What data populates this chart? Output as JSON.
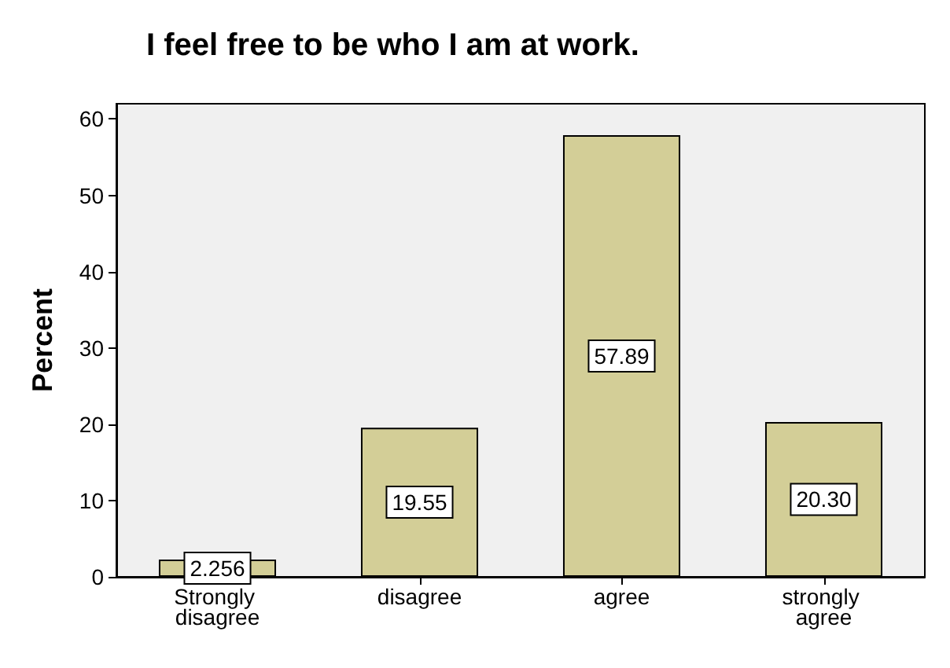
{
  "chart_data": {
    "type": "bar",
    "title": "I feel free to be who I am at work.",
    "ylabel": "Percent",
    "categories": [
      "Strongly disagree",
      "disagree",
      "agree",
      "strongly agree"
    ],
    "values": [
      2.256,
      19.55,
      57.89,
      20.3
    ],
    "color": "#d3ce97",
    "ylim": [
      0,
      62
    ],
    "yticks": [
      0,
      10,
      20,
      30,
      40,
      50,
      60
    ],
    "value_labels": [
      "2.256",
      "19.55",
      "57.89",
      "20.30"
    ],
    "grid": false
  }
}
